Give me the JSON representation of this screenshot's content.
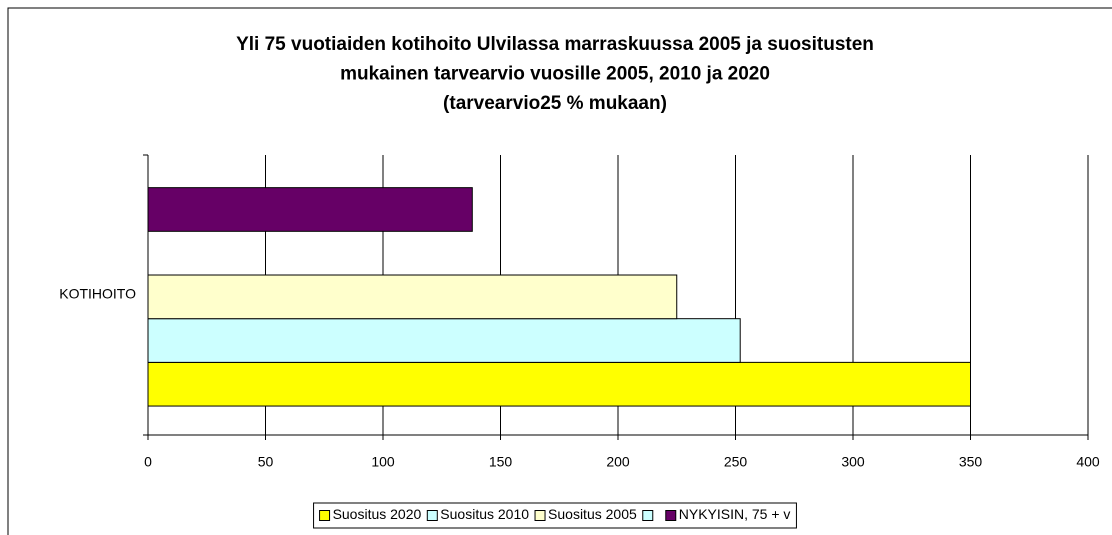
{
  "chart_data": {
    "type": "hbar",
    "title": [
      "Yli 75 vuotiaiden kotihoito Ulvilassa marraskuussa 2005 ja suositusten",
      "mukainen tarvearvio vuosille 2005, 2010 ja 2020",
      "(tarvearvio25 % mukaan)"
    ],
    "categories": [
      "KOTIHOITO"
    ],
    "series": [
      {
        "name": "Suositus 2020",
        "color": "#FFFF00",
        "values": [
          350
        ]
      },
      {
        "name": "Suositus 2010",
        "color": "#CCFFFF",
        "values": [
          252
        ]
      },
      {
        "name": "Suositus 2005",
        "color": "#FFFFCC",
        "values": [
          225
        ]
      },
      {
        "name": null,
        "color": "#CCFFFF",
        "values": [
          null
        ]
      },
      {
        "name": "NYKYISIN, 75 + v",
        "color": "#660066",
        "values": [
          138
        ]
      }
    ],
    "xlim": [
      0,
      400
    ],
    "xticks": [
      0,
      50,
      100,
      150,
      200,
      250,
      300,
      350,
      400
    ],
    "grid": true,
    "legend": "bottom"
  }
}
